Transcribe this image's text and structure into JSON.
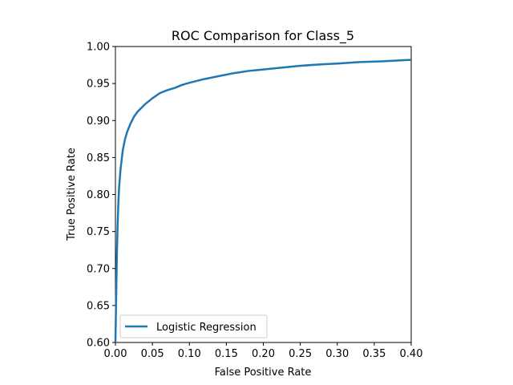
{
  "chart_data": {
    "type": "line",
    "title": "ROC Comparison for Class_5",
    "xlabel": "False Positive Rate",
    "ylabel": "True Positive Rate",
    "xlim": [
      0.0,
      0.4
    ],
    "ylim": [
      0.6,
      1.0
    ],
    "x_ticks": [
      "0.00",
      "0.05",
      "0.10",
      "0.15",
      "0.20",
      "0.25",
      "0.30",
      "0.35",
      "0.40"
    ],
    "y_ticks": [
      "0.60",
      "0.65",
      "0.70",
      "0.75",
      "0.80",
      "0.85",
      "0.90",
      "0.95",
      "1.00"
    ],
    "grid": false,
    "legend_position": "lower-left",
    "series": [
      {
        "name": "Logistic Regression",
        "color": "#1f77b4",
        "x": [
          0.0,
          0.001,
          0.002,
          0.003,
          0.004,
          0.005,
          0.007,
          0.01,
          0.013,
          0.016,
          0.02,
          0.025,
          0.03,
          0.04,
          0.05,
          0.06,
          0.07,
          0.08,
          0.09,
          0.1,
          0.12,
          0.14,
          0.16,
          0.18,
          0.2,
          0.22,
          0.25,
          0.28,
          0.3,
          0.33,
          0.36,
          0.38,
          0.4
        ],
        "y": [
          0.6,
          0.66,
          0.72,
          0.76,
          0.79,
          0.81,
          0.835,
          0.86,
          0.875,
          0.885,
          0.895,
          0.905,
          0.912,
          0.922,
          0.93,
          0.937,
          0.941,
          0.944,
          0.948,
          0.951,
          0.956,
          0.96,
          0.964,
          0.967,
          0.969,
          0.971,
          0.974,
          0.976,
          0.977,
          0.979,
          0.98,
          0.981,
          0.982
        ]
      }
    ]
  }
}
